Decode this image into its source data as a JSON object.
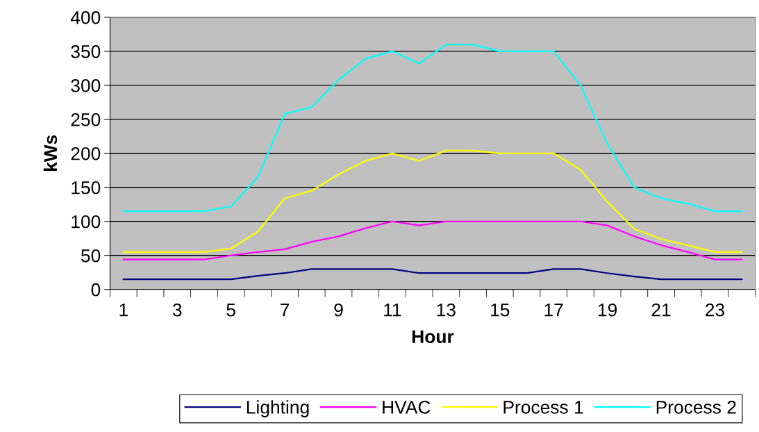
{
  "chart_data": {
    "type": "line",
    "xlabel": "Hour",
    "ylabel": "kWs",
    "categories": [
      "1",
      null,
      "3",
      null,
      "5",
      null,
      "7",
      null,
      "9",
      null,
      "11",
      null,
      "13",
      null,
      "15",
      null,
      "17",
      null,
      "19",
      null,
      "21",
      null,
      "23",
      null
    ],
    "series": [
      {
        "name": "Lighting",
        "color": "#000080",
        "values": [
          15,
          15,
          15,
          15,
          15,
          20,
          24,
          30,
          30,
          30,
          30,
          24,
          24,
          24,
          24,
          24,
          30,
          30,
          24,
          19,
          15,
          15,
          15,
          15
        ]
      },
      {
        "name": "HVAC",
        "color": "#ff00ff",
        "values": [
          44,
          44,
          44,
          44,
          50,
          55,
          59,
          70,
          78,
          90,
          100,
          94,
          100,
          100,
          100,
          100,
          100,
          100,
          94,
          78,
          65,
          55,
          44,
          44
        ]
      },
      {
        "name": "Process 1",
        "color": "#ffff00",
        "values": [
          55,
          55,
          55,
          55,
          60,
          85,
          134,
          145,
          169,
          189,
          200,
          189,
          204,
          204,
          200,
          200,
          200,
          176,
          129,
          89,
          74,
          65,
          55,
          55
        ]
      },
      {
        "name": "Process 2",
        "color": "#00ffff",
        "values": [
          115,
          115,
          115,
          115,
          122,
          165,
          258,
          268,
          308,
          339,
          350,
          332,
          360,
          360,
          350,
          350,
          350,
          300,
          214,
          150,
          134,
          126,
          115,
          115
        ]
      }
    ],
    "ylim": [
      0,
      400
    ],
    "yticks": [
      0,
      50,
      100,
      150,
      200,
      250,
      300,
      350,
      400
    ],
    "grid": "y",
    "legend": "bottom",
    "marker": "none",
    "line_style": "solid"
  }
}
